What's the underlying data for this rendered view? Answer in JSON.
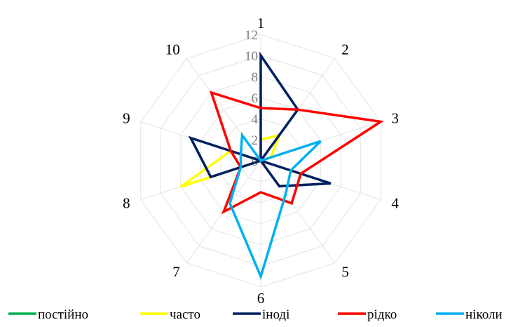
{
  "chart_data": {
    "type": "radar",
    "categories": [
      "1",
      "2",
      "3",
      "4",
      "5",
      "6",
      "7",
      "8",
      "9",
      "10"
    ],
    "rmax": 12,
    "ticks": [
      "0",
      "2",
      "4",
      "6",
      "8",
      "10",
      "12"
    ],
    "grid": true,
    "legend_position": "bottom",
    "series": [
      {
        "name": "постійно",
        "color": "#00b050",
        "values": [
          1,
          0,
          0,
          0,
          0,
          0,
          0,
          0,
          1,
          0
        ]
      },
      {
        "name": "часто",
        "color": "#ffff00",
        "values": [
          2,
          3,
          1,
          0,
          1,
          0,
          0,
          8,
          3,
          0
        ]
      },
      {
        "name": "іноді",
        "color": "#002060",
        "values": [
          10,
          6,
          0,
          7,
          3,
          0,
          0,
          5,
          7,
          0
        ]
      },
      {
        "name": "рідко",
        "color": "#ff0000",
        "values": [
          5,
          6,
          12,
          4,
          5,
          3,
          6,
          2,
          3,
          8
        ]
      },
      {
        "name": "ніколи",
        "color": "#00b0f0",
        "values": [
          0,
          0,
          6,
          3,
          4,
          11,
          5,
          2,
          2,
          3
        ]
      }
    ]
  }
}
